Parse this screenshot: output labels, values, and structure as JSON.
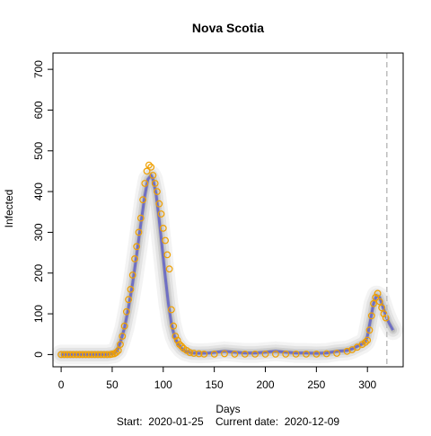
{
  "chart_data": {
    "type": "line",
    "title": "Nova Scotia",
    "xlabel": "Days",
    "ylabel": "Infected",
    "footer": "Start:  2020-01-25    Current date:  2020-12-09",
    "xlim": [
      -8,
      335
    ],
    "ylim": [
      -30,
      740
    ],
    "xticks": [
      0,
      50,
      100,
      150,
      200,
      250,
      300
    ],
    "yticks": [
      0,
      100,
      200,
      300,
      400,
      500,
      600,
      700
    ],
    "current_day_marker": 319,
    "colors": {
      "band": "#9a9a9a",
      "model_line": "#6f6fc4",
      "observed": "#f0a000",
      "marker_line": "#bdbdbd"
    },
    "model": {
      "x": [
        0,
        45,
        52,
        55,
        58,
        62,
        66,
        70,
        74,
        78,
        82,
        85,
        88,
        90,
        93,
        96,
        99,
        102,
        105,
        108,
        111,
        114,
        118,
        122,
        128,
        135,
        145,
        160,
        170,
        180,
        190,
        200,
        210,
        220,
        230,
        240,
        250,
        260,
        270,
        280,
        285,
        290,
        295,
        298,
        300,
        303,
        306,
        309,
        312,
        315,
        318,
        321,
        325
      ],
      "y": [
        0,
        0,
        3,
        10,
        30,
        65,
        115,
        175,
        245,
        320,
        390,
        430,
        440,
        430,
        395,
        330,
        260,
        190,
        125,
        75,
        45,
        28,
        15,
        8,
        4,
        3,
        4,
        8,
        6,
        4,
        4,
        6,
        8,
        6,
        4,
        4,
        3,
        4,
        8,
        10,
        14,
        20,
        26,
        32,
        45,
        85,
        125,
        145,
        140,
        118,
        96,
        78,
        60
      ]
    },
    "observed": {
      "x": [
        0,
        3,
        6,
        9,
        12,
        15,
        18,
        21,
        24,
        27,
        30,
        33,
        36,
        39,
        42,
        45,
        48,
        50,
        52,
        54,
        56,
        58,
        60,
        62,
        64,
        66,
        68,
        70,
        72,
        74,
        76,
        78,
        80,
        82,
        84,
        86,
        88,
        90,
        92,
        94,
        96,
        98,
        100,
        102,
        104,
        106,
        108,
        110,
        112,
        114,
        116,
        118,
        120,
        123,
        126,
        130,
        135,
        140,
        150,
        160,
        170,
        180,
        190,
        200,
        210,
        220,
        230,
        240,
        250,
        260,
        270,
        280,
        285,
        290,
        295,
        298,
        300,
        302,
        304,
        306,
        308,
        310,
        312,
        314,
        316,
        318
      ],
      "y": [
        0,
        0,
        0,
        0,
        0,
        0,
        0,
        0,
        0,
        0,
        0,
        0,
        0,
        0,
        0,
        0,
        0,
        1,
        2,
        5,
        10,
        25,
        45,
        70,
        105,
        135,
        160,
        195,
        235,
        265,
        300,
        335,
        380,
        420,
        450,
        465,
        460,
        440,
        420,
        400,
        370,
        345,
        310,
        280,
        245,
        210,
        110,
        70,
        45,
        35,
        25,
        20,
        15,
        10,
        5,
        3,
        2,
        1,
        1,
        2,
        1,
        1,
        1,
        1,
        1,
        1,
        1,
        1,
        1,
        2,
        3,
        8,
        12,
        18,
        25,
        30,
        35,
        60,
        95,
        125,
        140,
        150,
        130,
        115,
        100,
        90
      ]
    }
  }
}
